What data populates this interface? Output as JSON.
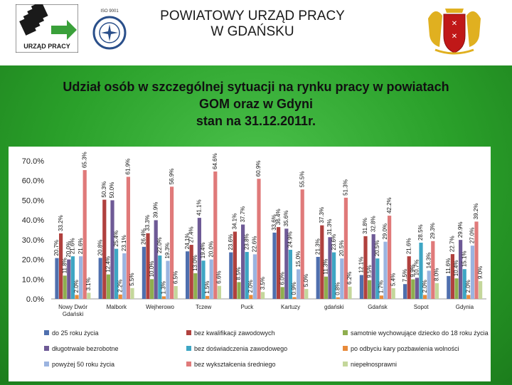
{
  "header": {
    "title_line1": "POWIATOWY URZĄD PRACY",
    "title_line2": "W GDAŃSKU",
    "logo_text": "URZĄD PRACY",
    "iso_text": "ISO 9001"
  },
  "subtitle": {
    "line1": "Udział osób w szczególnej sytuacji na rynku pracy w powiatach",
    "line2": "GOM oraz w Gdyni",
    "line3": "stan na 31.12.2011r."
  },
  "chart_data": {
    "type": "bar",
    "ylim": [
      0,
      70
    ],
    "yticks": [
      "0.0%",
      "10.0%",
      "20.0%",
      "30.0%",
      "40.0%",
      "50.0%",
      "60.0%",
      "70.0%"
    ],
    "grid": false,
    "legend_position": "bottom",
    "categories": [
      "Nowy Dwór Gdański",
      "Malbork",
      "Wejherowo",
      "Tczew",
      "Puck",
      "Kartuzy",
      "gdański",
      "Gdańsk",
      "Sopot",
      "Gdynia"
    ],
    "series": [
      {
        "name": "do 25 roku życia",
        "color": "#4f6fae",
        "values": [
          20.7,
          20.8,
          26.4,
          24.1,
          23.6,
          33.6,
          21.3,
          12.1,
          7.5,
          11.6
        ]
      },
      {
        "name": "bez kwalifikacji zawodowych",
        "color": "#b0413e",
        "values": [
          33.2,
          50.3,
          33.3,
          27.4,
          34.1,
          36.4,
          37.3,
          31.8,
          21.6,
          22.7
        ]
      },
      {
        "name": "samotnie wychowujące dziecko do 18 roku życia",
        "color": "#8fae4f",
        "values": [
          11.8,
          12.4,
          10.0,
          13.0,
          8.5,
          6.0,
          11.3,
          9.5,
          9.9,
          10.4
        ]
      },
      {
        "name": "długotrwale bezrobotne",
        "color": "#6e5a96",
        "values": [
          20.0,
          50.0,
          39.9,
          41.1,
          37.7,
          35.6,
          31.3,
          32.8,
          10.7,
          29.9
        ]
      },
      {
        "name": "bez doświadczenia zawodowego",
        "color": "#3ea6c4",
        "values": [
          21.6,
          25.4,
          22.0,
          19.4,
          23.8,
          24.9,
          23.6,
          20.5,
          28.5,
          15.1
        ]
      },
      {
        "name": "po odbyciu kary pozbawienia wolności",
        "color": "#e88a3a",
        "values": [
          2.0,
          2.2,
          1.3,
          1.5,
          2.0,
          0.9,
          0.8,
          1.7,
          2.0,
          2.0
        ]
      },
      {
        "name": "powyżej 50 roku życia",
        "color": "#9bb4e0",
        "values": [
          21.6,
          23.1,
          19.3,
          20.0,
          22.6,
          15.0,
          20.5,
          29.0,
          14.3,
          27.0
        ]
      },
      {
        "name": "bez wykształcenia średniego",
        "color": "#e07a7a",
        "values": [
          65.3,
          61.9,
          56.9,
          64.6,
          60.9,
          55.5,
          51.3,
          42.2,
          29.3,
          39.2
        ]
      },
      {
        "name": "niepełnosprawni",
        "color": "#c4d79b",
        "values": [
          3.1,
          5.5,
          6.5,
          6.6,
          3.5,
          5.0,
          6.2,
          5.4,
          8.0,
          9.0
        ]
      }
    ],
    "value_labels": [
      [
        "20.7%",
        "33.2%",
        "11.8%",
        "20.0%",
        "21.6%",
        "2.0%",
        "21.6%",
        "65.3%",
        "3.1%"
      ],
      [
        "20.8%",
        "50.3%",
        "12.4%",
        "50.0%",
        "25.4%",
        "2.2%",
        "23.1%",
        "61.9%",
        "5.5%"
      ],
      [
        "26.4%",
        "33.3%",
        "10.0%",
        "39.9%",
        "22.0%",
        "1.3%",
        "19.3%",
        "56.9%",
        "6.5%"
      ],
      [
        "24.1%",
        "27.4%",
        "13.0%",
        "41.1%",
        "19.4%",
        "1.5%",
        "20.0%",
        "64.6%",
        "6.6%"
      ],
      [
        "23.6%",
        "34.1%",
        "8.5%",
        "37.7%",
        "23.8%",
        "2.0%",
        "22.6%",
        "60.9%",
        "3.5%"
      ],
      [
        "33.6%",
        "36.4%",
        "6.0%",
        "35.6%",
        "24.9%",
        "0.9%",
        "15.0%",
        "55.5%",
        "5.0%"
      ],
      [
        "21.3%",
        "37.3%",
        "11.3%",
        "31.3%",
        "23.6%",
        "0.8%",
        "20.5%",
        "51.3%",
        "6.2%"
      ],
      [
        "12.1%",
        "31.8%",
        "9.5%",
        "32.8%",
        "20.5%",
        "1.7%",
        "29.0%",
        "42.2%",
        "5.4%"
      ],
      [
        "7.5%",
        "21.6%",
        "9.9%",
        "10.7%",
        "28.5%",
        "2.0%",
        "14.3%",
        "29.3%",
        "8.0%"
      ],
      [
        "11.6%",
        "22.7%",
        "10.4%",
        "29.9%",
        "15.1%",
        "2.0%",
        "27.0%",
        "39.2%",
        "9.0%"
      ]
    ]
  }
}
